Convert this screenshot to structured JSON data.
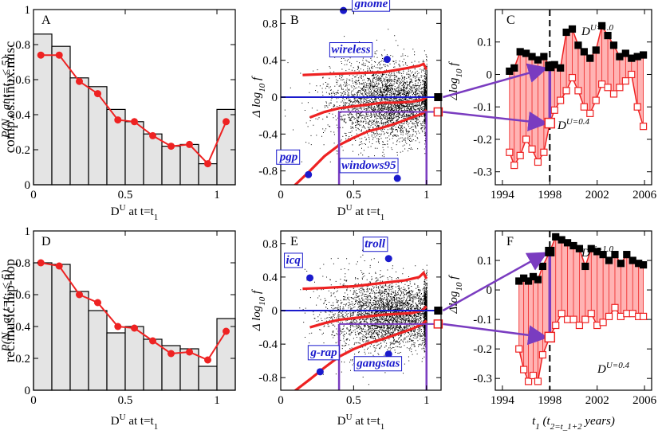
{
  "colors": {
    "red": "#ee2222",
    "blue": "#1a1acc",
    "purple": "#7a3cc0",
    "pink": "#ffb3b3",
    "bar_fill": "#e4e4e4"
  },
  "row_labels": [
    "comp.os.linux.misc",
    "rec.music.hip-hop"
  ],
  "text": {
    "ylab_hist": "P(N_w at t=t_2 ≤ 5)",
    "xlab_hist": "D^U at t=t_1",
    "ylab_scatter": "Δ log_10 f",
    "xlab_scatter": "D^U at t=t_1",
    "ylab_time": "Δlog_10 f",
    "xlab_time": "t_1 (t_2=t_1+2 years)",
    "du1": "D^U=1.0",
    "du04": "D^U=0.4"
  },
  "chart_data": [
    {
      "panel": "A",
      "type": "bar",
      "group": "comp.os.linux.misc",
      "xlabel": "D^U at t=t_1",
      "ylabel": "P(N_w at t=t_2 ≤ 5)",
      "xlim": [
        0,
        1.1
      ],
      "ylim": [
        0,
        1.0
      ],
      "xticks": [
        0,
        0.5,
        1
      ],
      "yticks": [
        0,
        0.2,
        0.4,
        0.6,
        0.8,
        1.0
      ],
      "bar_edges": [
        0,
        0.1,
        0.2,
        0.3,
        0.4,
        0.5,
        0.6,
        0.7,
        0.8,
        0.9,
        1.0,
        1.1
      ],
      "bar_values": [
        0.86,
        0.79,
        0.61,
        0.56,
        0.43,
        0.36,
        0.29,
        0.22,
        0.23,
        0.12,
        0.43
      ],
      "line_x": [
        0.04,
        0.14,
        0.25,
        0.35,
        0.46,
        0.55,
        0.65,
        0.75,
        0.85,
        0.95,
        1.05
      ],
      "line_y": [
        0.74,
        0.74,
        0.59,
        0.52,
        0.37,
        0.36,
        0.28,
        0.22,
        0.23,
        0.12,
        0.36
      ]
    },
    {
      "panel": "B",
      "type": "scatter",
      "group": "comp.os.linux.misc",
      "xlabel": "D^U at t=t_1",
      "ylabel": "Δ log_10 f",
      "xlim": [
        0,
        1.1
      ],
      "ylim": [
        -0.95,
        0.95
      ],
      "xticks": [
        0,
        0.5,
        1
      ],
      "yticks": [
        -0.8,
        -0.4,
        0,
        0.4,
        0.8
      ],
      "cloud_center_du": 0.75,
      "upper_x": [
        0.15,
        0.3,
        0.5,
        0.7,
        0.85,
        0.95,
        0.98,
        1.0
      ],
      "upper_y": [
        0.24,
        0.25,
        0.26,
        0.27,
        0.31,
        0.34,
        0.36,
        0.3
      ],
      "median_x": [
        0.2,
        0.3,
        0.4,
        0.5,
        0.6,
        0.7,
        0.8,
        0.9,
        0.97,
        1.0
      ],
      "median_y": [
        -0.22,
        -0.16,
        -0.12,
        -0.1,
        -0.08,
        -0.06,
        -0.06,
        -0.05,
        -0.03,
        0.0
      ],
      "lower_x": [
        0.08,
        0.2,
        0.3,
        0.4,
        0.5,
        0.6,
        0.7,
        0.8,
        0.9,
        0.97,
        1.0
      ],
      "lower_y": [
        -0.98,
        -0.8,
        -0.64,
        -0.52,
        -0.44,
        -0.37,
        -0.33,
        -0.28,
        -0.22,
        -0.18,
        -0.14
      ],
      "seeds": [
        {
          "name": "gnome",
          "du": 0.43,
          "df": 0.94
        },
        {
          "name": "wireless",
          "du": 0.73,
          "df": 0.41
        },
        {
          "name": "pgp",
          "du": 0.19,
          "df": -0.84
        },
        {
          "name": "windows95",
          "du": 0.8,
          "df": -0.88
        }
      ],
      "guides": {
        "du_values": [
          0.4,
          1.0
        ],
        "df_values": [
          0.0,
          -0.16
        ],
        "markers_du": 1.08
      }
    },
    {
      "panel": "C",
      "type": "line",
      "group": "comp.os.linux.misc",
      "xlabel": "",
      "ylabel": "Δlog_10 f",
      "xlim": [
        1993.4,
        2006.6
      ],
      "ylim": [
        -0.34,
        0.2
      ],
      "xticks": [
        1994,
        1998,
        2002,
        2006
      ],
      "yticks": [
        -0.3,
        -0.2,
        -0.1,
        0,
        0.1
      ],
      "vline_year": 1998,
      "series": [
        {
          "name": "D^U=1.0",
          "x": [
            1994.6,
            1995,
            1995.5,
            1996,
            1996.5,
            1997,
            1997.5,
            1998,
            1998.4,
            1998.9,
            1999.4,
            1999.9,
            2000.4,
            2000.9,
            2001.4,
            2001.9,
            2002.4,
            2002.9,
            2003.4,
            2003.9,
            2004.4,
            2004.9,
            2005.4,
            2005.9
          ],
          "y": [
            0.01,
            0.02,
            0.07,
            0.065,
            0.055,
            0.045,
            0.055,
            0.025,
            0.03,
            0.02,
            0.13,
            0.14,
            0.09,
            0.07,
            0.05,
            0.075,
            0.15,
            0.12,
            0.09,
            0.055,
            0.065,
            0.05,
            0.055,
            0.06
          ]
        },
        {
          "name": "D^U=0.4",
          "x": [
            1994.6,
            1995,
            1995.5,
            1996,
            1996.5,
            1997,
            1997.5,
            1998,
            1998.4,
            1998.9,
            1999.4,
            1999.9,
            2000.4,
            2000.9,
            2001.4,
            2001.9,
            2002.4,
            2002.9,
            2003.4,
            2003.9,
            2004.4,
            2004.9,
            2005.4,
            2005.9
          ],
          "y": [
            -0.24,
            -0.28,
            -0.25,
            -0.2,
            -0.23,
            -0.27,
            -0.24,
            -0.15,
            -0.11,
            -0.08,
            -0.05,
            -0.01,
            -0.05,
            -0.1,
            -0.12,
            -0.08,
            -0.03,
            -0.04,
            -0.06,
            -0.04,
            -0.02,
            0.0,
            -0.1,
            -0.16
          ]
        }
      ]
    },
    {
      "panel": "D",
      "type": "bar",
      "group": "rec.music.hip-hop",
      "xlabel": "D^U at t=t_1",
      "ylabel": "P(N_w at t=t_2 ≤ 5)",
      "xlim": [
        0,
        1.1
      ],
      "ylim": [
        0,
        1.0
      ],
      "xticks": [
        0,
        0.5,
        1
      ],
      "yticks": [
        0,
        0.2,
        0.4,
        0.6,
        0.8,
        1.0
      ],
      "bar_edges": [
        0,
        0.1,
        0.2,
        0.3,
        0.4,
        0.5,
        0.6,
        0.7,
        0.8,
        0.9,
        1.0,
        1.1
      ],
      "bar_values": [
        0.8,
        0.79,
        0.62,
        0.5,
        0.36,
        0.4,
        0.32,
        0.28,
        0.26,
        0.15,
        0.45
      ],
      "line_x": [
        0.04,
        0.14,
        0.25,
        0.35,
        0.46,
        0.55,
        0.65,
        0.75,
        0.85,
        0.95,
        1.05
      ],
      "line_y": [
        0.8,
        0.78,
        0.6,
        0.55,
        0.4,
        0.39,
        0.31,
        0.23,
        0.24,
        0.19,
        0.37
      ]
    },
    {
      "panel": "E",
      "type": "scatter",
      "group": "rec.music.hip-hop",
      "xlabel": "D^U at t=t_1",
      "ylabel": "Δ log_10 f",
      "xlim": [
        0,
        1.1
      ],
      "ylim": [
        -0.95,
        0.95
      ],
      "xticks": [
        0,
        0.5,
        1
      ],
      "yticks": [
        -0.8,
        -0.4,
        0,
        0.4,
        0.8
      ],
      "cloud_center_du": 0.75,
      "upper_x": [
        0.15,
        0.3,
        0.5,
        0.7,
        0.85,
        0.95,
        0.98,
        1.0
      ],
      "upper_y": [
        0.26,
        0.27,
        0.29,
        0.33,
        0.36,
        0.4,
        0.45,
        0.38
      ],
      "median_x": [
        0.2,
        0.3,
        0.4,
        0.5,
        0.6,
        0.7,
        0.8,
        0.9,
        0.97,
        1.0
      ],
      "median_y": [
        -0.2,
        -0.15,
        -0.11,
        -0.09,
        -0.07,
        -0.05,
        -0.04,
        -0.03,
        0.0,
        0.05
      ],
      "lower_x": [
        0.08,
        0.2,
        0.3,
        0.4,
        0.5,
        0.6,
        0.7,
        0.8,
        0.9,
        0.97,
        1.0
      ],
      "lower_y": [
        -0.98,
        -0.82,
        -0.68,
        -0.55,
        -0.46,
        -0.39,
        -0.34,
        -0.28,
        -0.22,
        -0.16,
        -0.12
      ],
      "seeds": [
        {
          "name": "troll",
          "du": 0.74,
          "df": 0.62
        },
        {
          "name": "icq",
          "du": 0.2,
          "df": 0.39
        },
        {
          "name": "g-rap",
          "du": 0.27,
          "df": -0.73
        },
        {
          "name": "gangstas",
          "du": 0.74,
          "df": -0.52
        }
      ],
      "guides": {
        "du_values": [
          0.4,
          1.0
        ],
        "df_values": [
          0.0,
          -0.16
        ],
        "markers_du": 1.08
      }
    },
    {
      "panel": "F",
      "type": "line",
      "group": "rec.music.hip-hop",
      "xlabel": "t_1 (t_2=t_1+2 years)",
      "ylabel": "Δlog_10 f",
      "xlim": [
        1993.4,
        2006.6
      ],
      "ylim": [
        -0.34,
        0.2
      ],
      "xticks": [
        1994,
        1998,
        2002,
        2006
      ],
      "yticks": [
        -0.3,
        -0.2,
        -0.1,
        0,
        0.1
      ],
      "vline_year": 1998,
      "series": [
        {
          "name": "D^U=1.0",
          "x": [
            1995.4,
            1995.8,
            1996.2,
            1996.6,
            1997,
            1997.4,
            1998,
            1998.5,
            1999,
            1999.5,
            2000,
            2000.5,
            2001,
            2001.5,
            2002,
            2002.5,
            2003,
            2003.5,
            2004,
            2004.5,
            2005,
            2005.5,
            2005.9
          ],
          "y": [
            0.03,
            0.04,
            0.03,
            0.045,
            0.035,
            0.08,
            0.13,
            0.18,
            0.17,
            0.16,
            0.15,
            0.14,
            0.08,
            0.14,
            0.13,
            0.12,
            0.1,
            0.12,
            0.09,
            0.12,
            0.1,
            0.09,
            0.085
          ]
        },
        {
          "name": "D^U=0.4",
          "x": [
            1995.4,
            1995.8,
            1996.2,
            1996.6,
            1997,
            1997.4,
            1998,
            1998.5,
            1999,
            1999.5,
            2000,
            2000.5,
            2001,
            2001.5,
            2002,
            2002.5,
            2003,
            2003.5,
            2004,
            2004.5,
            2005,
            2005.5,
            2005.9
          ],
          "y": [
            -0.2,
            -0.27,
            -0.31,
            -0.29,
            -0.31,
            -0.22,
            -0.16,
            -0.12,
            -0.08,
            -0.1,
            -0.1,
            -0.12,
            -0.1,
            -0.08,
            -0.12,
            -0.11,
            -0.09,
            -0.06,
            -0.09,
            -0.08,
            -0.08,
            -0.09,
            -0.09
          ]
        }
      ]
    }
  ]
}
